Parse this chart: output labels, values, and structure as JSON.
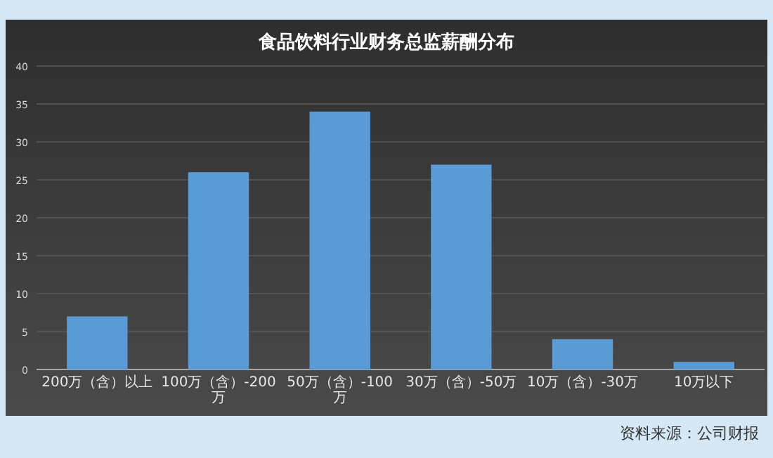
{
  "chart_data": {
    "type": "bar",
    "title": "食品饮料行业财务总监薪酬分布",
    "categories": [
      "200万（含）以上",
      "100万（含）-200万",
      "50万（含）-100万",
      "30万（含）-50万",
      "10万（含）-30万",
      "10万以下"
    ],
    "values": [
      7,
      26,
      34,
      27,
      4,
      1
    ],
    "color": "#5b9bd5",
    "ylim": [
      0,
      40
    ],
    "yticks": [
      0,
      5,
      10,
      15,
      20,
      25,
      30,
      35,
      40
    ],
    "grid": "y",
    "annotations": [
      "资料来源：公司财报"
    ]
  }
}
